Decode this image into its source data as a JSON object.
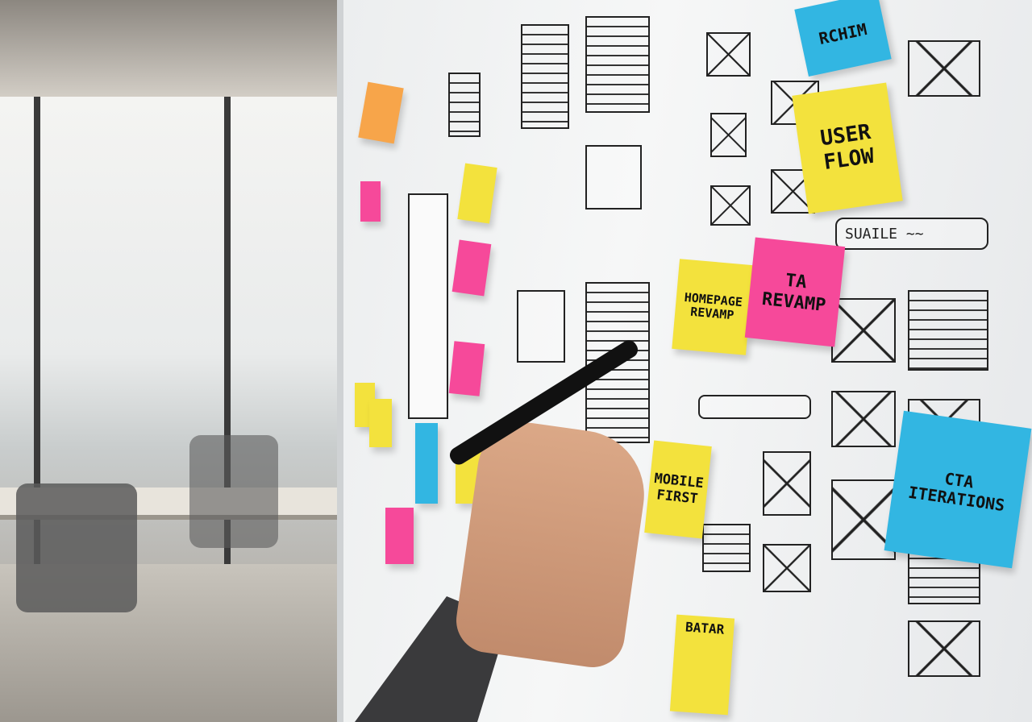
{
  "notes": {
    "top_blue": "RCHIM",
    "user_flow": "USER FLOW",
    "homepage_revamp": "HOMEPAGE REVAMP",
    "ta_revamp": "TA REVAMP",
    "mobile_first": "MOBILE FIRST",
    "cta_iterations": "CTA ITERATIONS",
    "batar": "BATAR"
  },
  "board_labels": {
    "search_bar": "SUAILE ~~"
  },
  "colors": {
    "yellow": "#f3e23d",
    "pink": "#f6499a",
    "blue": "#32b6e2",
    "orange": "#f7a54a"
  }
}
